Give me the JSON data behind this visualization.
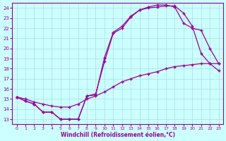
{
  "xlabel": "Windchill (Refroidissement éolien,°C)",
  "xlim": [
    -0.5,
    23.5
  ],
  "ylim": [
    12.5,
    24.5
  ],
  "xticks": [
    0,
    1,
    2,
    3,
    4,
    5,
    6,
    7,
    8,
    9,
    10,
    11,
    12,
    13,
    14,
    15,
    16,
    17,
    18,
    19,
    20,
    21,
    22,
    23
  ],
  "yticks": [
    13,
    14,
    15,
    16,
    17,
    18,
    19,
    20,
    21,
    22,
    23,
    24
  ],
  "bg_color": "#ccffff",
  "line_color": "#990099",
  "grid_color": "#aadddd",
  "curve1_x": [
    0,
    1,
    2,
    3,
    4,
    5,
    6,
    7,
    8,
    9,
    10,
    11,
    12,
    13,
    14,
    15,
    16,
    17,
    18,
    19,
    20,
    21,
    22,
    23
  ],
  "curve1_y": [
    15.2,
    14.8,
    14.5,
    13.7,
    13.7,
    13.0,
    13.0,
    13.0,
    15.3,
    15.4,
    19.1,
    21.6,
    22.2,
    23.2,
    23.8,
    24.0,
    24.1,
    24.2,
    24.2,
    23.5,
    22.2,
    19.5,
    18.5,
    17.8
  ],
  "curve2_x": [
    0,
    1,
    2,
    3,
    4,
    5,
    6,
    7,
    8,
    9,
    10,
    11,
    12,
    13,
    14,
    15,
    16,
    17,
    18,
    19,
    20,
    21,
    22,
    23
  ],
  "curve2_y": [
    15.2,
    14.8,
    14.5,
    13.7,
    13.7,
    13.0,
    13.0,
    13.0,
    15.3,
    15.5,
    18.7,
    21.5,
    22.0,
    23.1,
    23.8,
    24.1,
    24.3,
    24.3,
    24.1,
    22.5,
    22.0,
    21.8,
    20.0,
    18.5
  ],
  "curve3_x": [
    0,
    1,
    2,
    3,
    4,
    5,
    6,
    7,
    8,
    9,
    10,
    11,
    12,
    13,
    14,
    15,
    16,
    17,
    18,
    19,
    20,
    21,
    22,
    23
  ],
  "curve3_y": [
    15.2,
    15.0,
    14.7,
    14.5,
    14.3,
    14.2,
    14.2,
    14.5,
    15.0,
    15.3,
    15.7,
    16.2,
    16.7,
    17.0,
    17.3,
    17.5,
    17.7,
    18.0,
    18.2,
    18.3,
    18.4,
    18.5,
    18.5,
    18.5
  ]
}
